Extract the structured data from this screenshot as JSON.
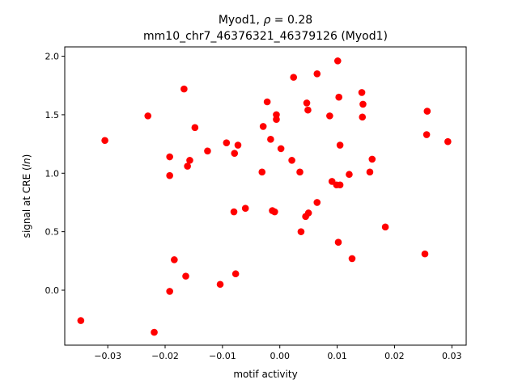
{
  "chart_data": {
    "type": "scatter",
    "title_line1_prefix": "Myod1, ",
    "title_rho_symbol": "ρ",
    "title_rho_value": " = 0.28",
    "title_line2": "mm10_chr7_46376321_46379126 (Myod1)",
    "xlabel": "motif activity",
    "ylabel_prefix": "signal at CRE (",
    "ylabel_italic": "ln",
    "ylabel_suffix": ")",
    "xlim": [
      -0.0375,
      0.0325
    ],
    "ylim": [
      -0.47,
      2.08
    ],
    "x_ticks": [
      -0.03,
      -0.02,
      -0.01,
      0.0,
      0.01,
      0.02,
      0.03
    ],
    "x_tick_labels": [
      "−0.03",
      "−0.02",
      "−0.01",
      "0.00",
      "0.01",
      "0.02",
      "0.03"
    ],
    "y_ticks": [
      0.0,
      0.5,
      1.0,
      1.5,
      2.0
    ],
    "y_tick_labels": [
      "0.0",
      "0.5",
      "1.0",
      "1.5",
      "2.0"
    ],
    "marker_color": "#ff0000",
    "grid": false,
    "points": [
      {
        "x": -0.0347,
        "y": -0.26
      },
      {
        "x": -0.0305,
        "y": 1.28
      },
      {
        "x": -0.023,
        "y": 1.49
      },
      {
        "x": -0.0219,
        "y": -0.36
      },
      {
        "x": -0.0192,
        "y": -0.01
      },
      {
        "x": -0.0192,
        "y": 1.14
      },
      {
        "x": -0.0192,
        "y": 0.98
      },
      {
        "x": -0.0184,
        "y": 0.26
      },
      {
        "x": -0.0167,
        "y": 1.72
      },
      {
        "x": -0.0164,
        "y": 0.12
      },
      {
        "x": -0.0161,
        "y": 1.06
      },
      {
        "x": -0.0157,
        "y": 1.11
      },
      {
        "x": -0.0148,
        "y": 1.39
      },
      {
        "x": -0.0126,
        "y": 1.19
      },
      {
        "x": -0.0104,
        "y": 0.05
      },
      {
        "x": -0.0093,
        "y": 1.26
      },
      {
        "x": -0.008,
        "y": 0.67
      },
      {
        "x": -0.0079,
        "y": 1.17
      },
      {
        "x": -0.0077,
        "y": 0.14
      },
      {
        "x": -0.0073,
        "y": 1.24
      },
      {
        "x": -0.006,
        "y": 0.7
      },
      {
        "x": -0.0031,
        "y": 1.01
      },
      {
        "x": -0.0029,
        "y": 1.4
      },
      {
        "x": -0.0022,
        "y": 1.61
      },
      {
        "x": -0.0016,
        "y": 1.29
      },
      {
        "x": -0.0013,
        "y": 0.68
      },
      {
        "x": -0.0009,
        "y": 0.67
      },
      {
        "x": -0.0006,
        "y": 1.5
      },
      {
        "x": -0.0006,
        "y": 1.46
      },
      {
        "x": 0.0002,
        "y": 1.21
      },
      {
        "x": 0.0021,
        "y": 1.11
      },
      {
        "x": 0.0024,
        "y": 1.82
      },
      {
        "x": 0.0035,
        "y": 1.01
      },
      {
        "x": 0.0037,
        "y": 0.5
      },
      {
        "x": 0.0045,
        "y": 0.63
      },
      {
        "x": 0.0047,
        "y": 1.6
      },
      {
        "x": 0.0049,
        "y": 1.54
      },
      {
        "x": 0.005,
        "y": 0.66
      },
      {
        "x": 0.0065,
        "y": 1.85
      },
      {
        "x": 0.0065,
        "y": 0.75
      },
      {
        "x": 0.0087,
        "y": 1.49
      },
      {
        "x": 0.0091,
        "y": 0.93
      },
      {
        "x": 0.0099,
        "y": 0.9
      },
      {
        "x": 0.0101,
        "y": 1.96
      },
      {
        "x": 0.0102,
        "y": 0.41
      },
      {
        "x": 0.0103,
        "y": 1.65
      },
      {
        "x": 0.0105,
        "y": 1.24
      },
      {
        "x": 0.0105,
        "y": 0.9
      },
      {
        "x": 0.0121,
        "y": 0.99
      },
      {
        "x": 0.0126,
        "y": 0.27
      },
      {
        "x": 0.0143,
        "y": 1.69
      },
      {
        "x": 0.0144,
        "y": 1.48
      },
      {
        "x": 0.0145,
        "y": 1.59
      },
      {
        "x": 0.0157,
        "y": 1.01
      },
      {
        "x": 0.0161,
        "y": 1.12
      },
      {
        "x": 0.0184,
        "y": 0.54
      },
      {
        "x": 0.0253,
        "y": 0.31
      },
      {
        "x": 0.0256,
        "y": 1.33
      },
      {
        "x": 0.0257,
        "y": 1.53
      },
      {
        "x": 0.0293,
        "y": 1.27
      }
    ]
  }
}
